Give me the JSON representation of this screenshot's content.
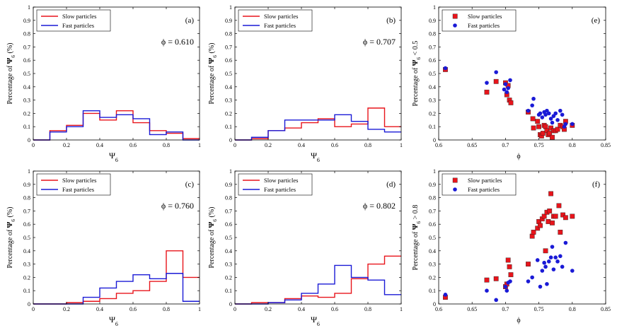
{
  "colors": {
    "slow": "#e8141b",
    "fast": "#1a1ad6",
    "axis": "#000000"
  },
  "chart_data": [
    {
      "id": "a",
      "type": "step-histogram",
      "panel_label": "(a)",
      "phi_text": "ϕ = 0.610",
      "xlabel_main": "Ψ",
      "xlabel_sub": "6",
      "ylabel_parts": [
        "Percentage of ",
        "Ψ",
        "6",
        " (%)"
      ],
      "xlim": [
        0,
        1
      ],
      "ylim": [
        0,
        1
      ],
      "xticks": [
        "0",
        "0.2",
        "0.4",
        "0.6",
        "0.8",
        "1"
      ],
      "yticks": [
        "0",
        "0.1",
        "0.2",
        "0.3",
        "0.4",
        "0.5",
        "0.6",
        "0.7",
        "0.8",
        "0.9",
        "1"
      ],
      "bin_edges": [
        0,
        0.1,
        0.2,
        0.3,
        0.4,
        0.5,
        0.6,
        0.7,
        0.8,
        0.9,
        1.0
      ],
      "series": [
        {
          "name": "Slow particles",
          "color_key": "slow",
          "values": [
            0,
            0.07,
            0.11,
            0.2,
            0.15,
            0.22,
            0.13,
            0.07,
            0.05,
            0.01
          ]
        },
        {
          "name": "Fast particles",
          "color_key": "fast",
          "values": [
            0,
            0.06,
            0.1,
            0.22,
            0.17,
            0.19,
            0.16,
            0.04,
            0.06,
            0.0
          ]
        }
      ]
    },
    {
      "id": "b",
      "type": "step-histogram",
      "panel_label": "(b)",
      "phi_text": "ϕ = 0.707",
      "xlabel_main": "Ψ",
      "xlabel_sub": "6",
      "ylabel_parts": [
        "Percentage of ",
        "Ψ",
        "6",
        " (%)"
      ],
      "xlim": [
        0,
        1
      ],
      "ylim": [
        0,
        1
      ],
      "xticks": [
        "0",
        "0.2",
        "0.4",
        "0.6",
        "0.8",
        "1"
      ],
      "yticks": [
        "0",
        "0.1",
        "0.2",
        "0.3",
        "0.4",
        "0.5",
        "0.6",
        "0.7",
        "0.8",
        "0.9",
        "1"
      ],
      "bin_edges": [
        0,
        0.1,
        0.2,
        0.3,
        0.4,
        0.5,
        0.6,
        0.7,
        0.8,
        0.9,
        1.0
      ],
      "series": [
        {
          "name": "Slow particles",
          "color_key": "slow",
          "values": [
            0,
            0.01,
            0.07,
            0.09,
            0.13,
            0.16,
            0.1,
            0.12,
            0.24,
            0.1
          ]
        },
        {
          "name": "Fast particles",
          "color_key": "fast",
          "values": [
            0,
            0.02,
            0.07,
            0.15,
            0.15,
            0.15,
            0.19,
            0.14,
            0.08,
            0.06
          ]
        }
      ]
    },
    {
      "id": "c",
      "type": "step-histogram",
      "panel_label": "(c)",
      "phi_text": "ϕ = 0.760",
      "xlabel_main": "Ψ",
      "xlabel_sub": "6",
      "ylabel_parts": [
        "Percentage of ",
        "Ψ",
        "6",
        " (%)"
      ],
      "xlim": [
        0,
        1
      ],
      "ylim": [
        0,
        1
      ],
      "xticks": [
        "0",
        "0.2",
        "0.4",
        "0.6",
        "0.8",
        "1"
      ],
      "yticks": [
        "0",
        "0.1",
        "0.2",
        "0.3",
        "0.4",
        "0.5",
        "0.6",
        "0.7",
        "0.8",
        "0.9",
        "1"
      ],
      "bin_edges": [
        0,
        0.1,
        0.2,
        0.3,
        0.4,
        0.5,
        0.6,
        0.7,
        0.8,
        0.9,
        1.0
      ],
      "series": [
        {
          "name": "Slow particles",
          "color_key": "slow",
          "values": [
            0,
            0,
            0.01,
            0.02,
            0.04,
            0.08,
            0.1,
            0.17,
            0.4,
            0.2
          ]
        },
        {
          "name": "Fast particles",
          "color_key": "fast",
          "values": [
            0,
            0,
            0,
            0.05,
            0.12,
            0.17,
            0.22,
            0.19,
            0.23,
            0.02
          ]
        }
      ]
    },
    {
      "id": "d",
      "type": "step-histogram",
      "panel_label": "(d)",
      "phi_text": "ϕ = 0.802",
      "xlabel_main": "Ψ",
      "xlabel_sub": "6",
      "ylabel_parts": [
        "Percentage of ",
        "Ψ",
        "6",
        " (%)"
      ],
      "xlim": [
        0,
        1
      ],
      "ylim": [
        0,
        1
      ],
      "xticks": [
        "0",
        "0.2",
        "0.4",
        "0.6",
        "0.8",
        "1"
      ],
      "yticks": [
        "0",
        "0.1",
        "0.2",
        "0.3",
        "0.4",
        "0.5",
        "0.6",
        "0.7",
        "0.8",
        "0.9",
        "1"
      ],
      "bin_edges": [
        0,
        0.1,
        0.2,
        0.3,
        0.4,
        0.5,
        0.6,
        0.7,
        0.8,
        0.9,
        1.0
      ],
      "series": [
        {
          "name": "Slow particles",
          "color_key": "slow",
          "values": [
            0,
            0.01,
            0.01,
            0.04,
            0.06,
            0.05,
            0.08,
            0.19,
            0.3,
            0.36
          ]
        },
        {
          "name": "Fast particles",
          "color_key": "fast",
          "values": [
            0,
            0,
            0.01,
            0.03,
            0.08,
            0.15,
            0.29,
            0.2,
            0.18,
            0.07
          ]
        }
      ]
    },
    {
      "id": "e",
      "type": "scatter",
      "panel_label": "(e)",
      "xlabel": "ϕ",
      "ylabel_parts": [
        "Percentage of ",
        "Ψ",
        "6",
        " < 0.5"
      ],
      "xlim": [
        0.6,
        0.85
      ],
      "ylim": [
        0,
        1
      ],
      "xticks": [
        "0.6",
        "0.65",
        "0.7",
        "0.75",
        "0.8",
        "0.85"
      ],
      "yticks": [
        "0",
        "0.1",
        "0.2",
        "0.3",
        "0.4",
        "0.5",
        "0.6",
        "0.7",
        "0.8",
        "0.9",
        "1"
      ],
      "series": [
        {
          "name": "Slow particles",
          "color_key": "slow",
          "marker": "square",
          "x": [
            0.61,
            0.672,
            0.686,
            0.7,
            0.702,
            0.704,
            0.706,
            0.708,
            0.734,
            0.741,
            0.742,
            0.748,
            0.75,
            0.752,
            0.754,
            0.756,
            0.758,
            0.76,
            0.762,
            0.764,
            0.766,
            0.768,
            0.77,
            0.772,
            0.775,
            0.778,
            0.782,
            0.786,
            0.788,
            0.79,
            0.8
          ],
          "y": [
            0.53,
            0.36,
            0.44,
            0.43,
            0.34,
            0.41,
            0.3,
            0.28,
            0.21,
            0.16,
            0.09,
            0.14,
            0.1,
            0.04,
            0.03,
            0.05,
            0.11,
            0.1,
            0.07,
            0.04,
            0.05,
            0.09,
            0.02,
            0.07,
            0.07,
            0.08,
            0.11,
            0.1,
            0.08,
            0.14,
            0.11
          ]
        },
        {
          "name": "Fast particles",
          "color_key": "fast",
          "marker": "circle",
          "x": [
            0.61,
            0.672,
            0.686,
            0.698,
            0.7,
            0.702,
            0.704,
            0.707,
            0.734,
            0.74,
            0.742,
            0.75,
            0.752,
            0.755,
            0.758,
            0.76,
            0.762,
            0.765,
            0.768,
            0.77,
            0.772,
            0.775,
            0.778,
            0.782,
            0.785,
            0.788,
            0.79,
            0.8
          ],
          "y": [
            0.54,
            0.43,
            0.51,
            0.38,
            0.42,
            0.36,
            0.39,
            0.45,
            0.22,
            0.26,
            0.31,
            0.19,
            0.2,
            0.17,
            0.21,
            0.19,
            0.22,
            0.2,
            0.16,
            0.13,
            0.18,
            0.2,
            0.15,
            0.22,
            0.19,
            0.1,
            0.12,
            0.12
          ]
        }
      ]
    },
    {
      "id": "f",
      "type": "scatter",
      "panel_label": "(f)",
      "xlabel": "ϕ",
      "ylabel_parts": [
        "Percentage of ",
        "Ψ",
        "6",
        " > 0.8"
      ],
      "xlim": [
        0.6,
        0.85
      ],
      "ylim": [
        0,
        1
      ],
      "xticks": [
        "0.6",
        "0.65",
        "0.7",
        "0.75",
        "0.8",
        "0.85"
      ],
      "yticks": [
        "0",
        "0.1",
        "0.2",
        "0.3",
        "0.4",
        "0.5",
        "0.6",
        "0.7",
        "0.8",
        "0.9",
        "1"
      ],
      "series": [
        {
          "name": "Slow particles",
          "color_key": "slow",
          "marker": "square",
          "x": [
            0.61,
            0.672,
            0.686,
            0.7,
            0.702,
            0.704,
            0.706,
            0.708,
            0.734,
            0.74,
            0.742,
            0.748,
            0.75,
            0.752,
            0.755,
            0.758,
            0.76,
            0.762,
            0.764,
            0.766,
            0.768,
            0.77,
            0.772,
            0.775,
            0.78,
            0.782,
            0.786,
            0.79,
            0.8
          ],
          "y": [
            0.05,
            0.18,
            0.19,
            0.13,
            0.15,
            0.33,
            0.28,
            0.22,
            0.3,
            0.51,
            0.54,
            0.57,
            0.62,
            0.59,
            0.64,
            0.66,
            0.4,
            0.69,
            0.62,
            0.7,
            0.83,
            0.61,
            0.66,
            0.66,
            0.74,
            0.54,
            0.67,
            0.65,
            0.66
          ]
        },
        {
          "name": "Fast particles",
          "color_key": "fast",
          "marker": "circle",
          "x": [
            0.61,
            0.672,
            0.686,
            0.7,
            0.702,
            0.704,
            0.707,
            0.734,
            0.74,
            0.748,
            0.752,
            0.755,
            0.758,
            0.76,
            0.762,
            0.765,
            0.768,
            0.77,
            0.772,
            0.775,
            0.778,
            0.782,
            0.785,
            0.79,
            0.8
          ],
          "y": [
            0.07,
            0.1,
            0.03,
            0.13,
            0.1,
            0.16,
            0.17,
            0.17,
            0.2,
            0.33,
            0.13,
            0.25,
            0.31,
            0.28,
            0.15,
            0.32,
            0.35,
            0.43,
            0.26,
            0.35,
            0.32,
            0.36,
            0.28,
            0.46,
            0.25
          ]
        }
      ]
    }
  ]
}
